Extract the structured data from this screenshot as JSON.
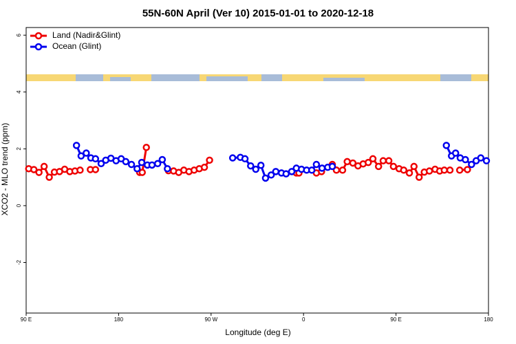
{
  "chart_data": {
    "type": "line",
    "title": "55N-60N April (Ver 10)   2015-01-01 to 2020-12-18",
    "x_label": "Longitude (deg E)",
    "y_label": "XCO2 - MLO trend (ppm)",
    "xlim": [
      90,
      540
    ],
    "ylim": [
      -3.78,
      6.27
    ],
    "xticks": [
      {
        "value": 90,
        "label": "90 E"
      },
      180,
      {
        "value": 270,
        "label": "90 W"
      },
      {
        "value": 360,
        "label": "0"
      },
      {
        "value": 450,
        "label": "90 E"
      },
      {
        "value": 540,
        "label": "180"
      }
    ],
    "yticks": [
      -2,
      0,
      2,
      4,
      6
    ],
    "grid": false,
    "legend": "top-left",
    "series": [
      {
        "name": "Land (Nadir&Glint)",
        "color": "#ee0000",
        "x": [
          92.5,
          97.5,
          102.5,
          107.5,
          112.5,
          117.5,
          122.5,
          127.5,
          132.5,
          137.5,
          142.5,
          null,
          152.5,
          157.5,
          null,
          200.5,
          203,
          207,
          null,
          228.5,
          233.5,
          238.5,
          243.5,
          248.5,
          253.5,
          258.5,
          263.5,
          268.5,
          null,
          353,
          355.5,
          null,
          372.5,
          377.5,
          null,
          388,
          392,
          398,
          402.5,
          408,
          413,
          418,
          423,
          427.5,
          433,
          437.5,
          443,
          447.5,
          453,
          457.5,
          463,
          467.5,
          472.5,
          477.5,
          482.5,
          488,
          492.5,
          497,
          502.5,
          null,
          512,
          519.5
        ],
        "values": [
          1.3,
          1.27,
          1.17,
          1.38,
          1.0,
          1.18,
          1.2,
          1.28,
          1.2,
          1.22,
          1.25,
          null,
          1.27,
          1.27,
          null,
          1.17,
          1.17,
          2.05,
          null,
          1.23,
          1.22,
          1.17,
          1.25,
          1.2,
          1.25,
          1.3,
          1.35,
          1.6,
          null,
          1.15,
          1.15,
          null,
          1.15,
          1.2,
          null,
          1.45,
          1.25,
          1.25,
          1.55,
          1.5,
          1.4,
          1.47,
          1.52,
          1.65,
          1.38,
          1.58,
          1.58,
          1.38,
          1.3,
          1.25,
          1.15,
          1.38,
          1.0,
          1.18,
          1.22,
          1.28,
          1.22,
          1.25,
          1.25,
          null,
          1.25,
          1.27
        ]
      },
      {
        "name": "Ocean (Glint)",
        "color": "#0000ee",
        "x": [
          139,
          143.5,
          148.5,
          153,
          157.5,
          163,
          167.5,
          172.5,
          177.5,
          182.5,
          187,
          192.5,
          198,
          202.5,
          208,
          212.5,
          218,
          222.5,
          227.5,
          null,
          291,
          298.5,
          303,
          308.5,
          313.5,
          318.5,
          323,
          328.5,
          333,
          338.5,
          343,
          348.5,
          353,
          358,
          363,
          368,
          372.5,
          378,
          383.5,
          388,
          null,
          499,
          504,
          508,
          512.5,
          517.5,
          523.5,
          528,
          532.5,
          538
        ],
        "values": [
          2.12,
          1.75,
          1.85,
          1.68,
          1.65,
          1.48,
          1.6,
          1.67,
          1.58,
          1.65,
          1.55,
          1.45,
          1.3,
          1.52,
          1.43,
          1.43,
          1.48,
          1.62,
          1.3,
          null,
          1.68,
          1.7,
          1.65,
          1.4,
          1.28,
          1.42,
          0.97,
          1.08,
          1.2,
          1.15,
          1.12,
          1.2,
          1.32,
          1.28,
          1.25,
          1.25,
          1.45,
          1.32,
          1.35,
          1.38,
          null,
          2.12,
          1.75,
          1.85,
          1.68,
          1.62,
          1.45,
          1.58,
          1.68,
          1.58
        ]
      }
    ]
  }
}
